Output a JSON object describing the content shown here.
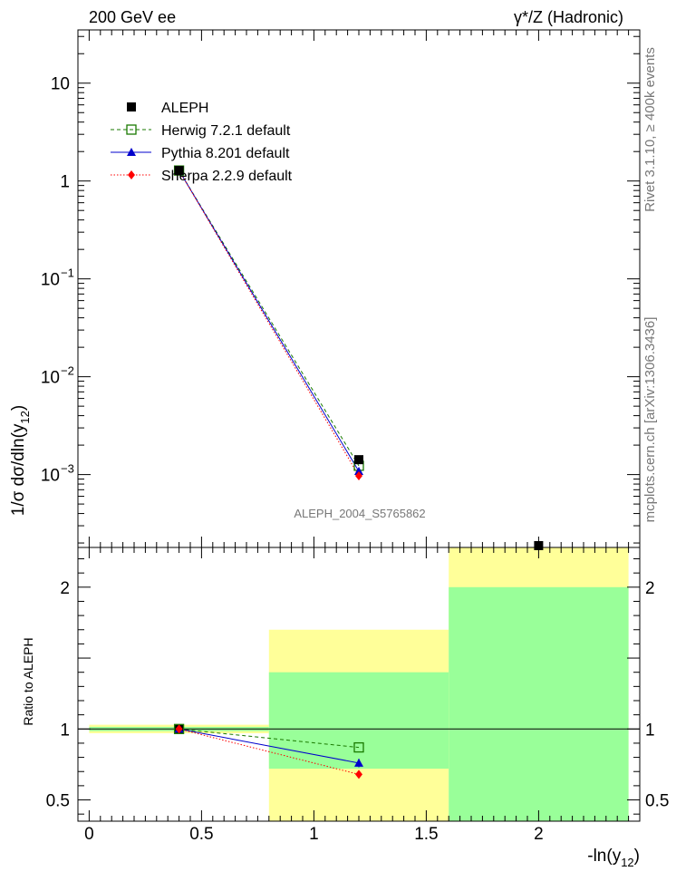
{
  "header": {
    "left": "200 GeV ee",
    "right": "γ*/Z (Hadronic)"
  },
  "side_labels": {
    "rivet": "Rivet 3.1.10, ≥ 400k events",
    "mcplots": "mcplots.cern.ch [arXiv:1306.3436]"
  },
  "watermark": "ALEPH_2004_S5765862",
  "colors": {
    "aleph": "#000000",
    "herwig": "#1a7a00",
    "pythia": "#0000cc",
    "sherpa": "#ff0000",
    "band_inner": "#99ff99",
    "band_outer": "#ffff99"
  },
  "chart_data": [
    {
      "type": "scatter",
      "panel": "main",
      "ylabel_main": "1/σ  dσ/dln(y",
      "ylabel_sub": "12",
      "ylabel_close": ")",
      "yscale": "log",
      "xlim": [
        -0.05,
        2.45
      ],
      "ylim": [
        0.00018,
        35
      ],
      "y_ticks": [
        {
          "value": 10,
          "base": "10",
          "exp": ""
        },
        {
          "value": 1,
          "base": "1",
          "exp": ""
        },
        {
          "value": 0.1,
          "base": "10",
          "exp": "−1"
        },
        {
          "value": 0.01,
          "base": "10",
          "exp": "−2"
        },
        {
          "value": 0.001,
          "base": "10",
          "exp": "−3"
        }
      ],
      "legend": [
        {
          "key": "aleph",
          "label": "ALEPH"
        },
        {
          "key": "herwig",
          "label": "Herwig 7.2.1 default"
        },
        {
          "key": "pythia",
          "label": "Pythia 8.201 default"
        },
        {
          "key": "sherpa",
          "label": "Sherpa 2.2.9 default"
        }
      ],
      "series": [
        {
          "key": "aleph",
          "x": [
            0.4,
            1.2,
            2.0
          ],
          "y": [
            1.28,
            0.00142,
            0.00018
          ]
        },
        {
          "key": "herwig",
          "x": [
            0.4,
            1.2
          ],
          "y": [
            1.28,
            0.00123
          ]
        },
        {
          "key": "pythia",
          "x": [
            0.4,
            1.2
          ],
          "y": [
            1.28,
            0.00108
          ]
        },
        {
          "key": "sherpa",
          "x": [
            0.4,
            1.2
          ],
          "y": [
            1.28,
            0.00097
          ]
        }
      ]
    },
    {
      "type": "scatter",
      "panel": "ratio",
      "ylabel": "Ratio to ALEPH",
      "xlabel_main": "-ln(y",
      "xlabel_sub": "12",
      "xlabel_close": ")",
      "xlim": [
        -0.05,
        2.45
      ],
      "ylim": [
        0.35,
        2.28
      ],
      "x_ticks": [
        {
          "value": 0,
          "label": "0"
        },
        {
          "value": 0.5,
          "label": "0.5"
        },
        {
          "value": 1,
          "label": "1"
        },
        {
          "value": 1.5,
          "label": "1.5"
        },
        {
          "value": 2,
          "label": "2"
        }
      ],
      "y_ticks": [
        {
          "value": 0.5,
          "label": "0.5"
        },
        {
          "value": 1,
          "label": "1"
        },
        {
          "value": 2,
          "label": "2"
        }
      ],
      "bands": [
        {
          "x0": 0.0,
          "x1": 0.8,
          "outer": [
            0.97,
            1.03
          ],
          "inner": [
            0.985,
            1.015
          ]
        },
        {
          "x0": 0.8,
          "x1": 1.6,
          "outer": [
            0.35,
            1.7
          ],
          "inner": [
            0.72,
            1.4
          ]
        },
        {
          "x0": 1.6,
          "x1": 2.4,
          "outer": [
            0.35,
            2.28
          ],
          "inner": [
            0.35,
            2.0
          ]
        }
      ],
      "series": [
        {
          "key": "herwig",
          "x": [
            0.4,
            1.2
          ],
          "y": [
            1.0,
            0.87
          ]
        },
        {
          "key": "pythia",
          "x": [
            0.4,
            1.2
          ],
          "y": [
            1.0,
            0.76
          ],
          "err": [
            0.0,
            0.03
          ]
        },
        {
          "key": "sherpa",
          "x": [
            0.4,
            1.2
          ],
          "y": [
            1.0,
            0.68
          ]
        }
      ]
    }
  ]
}
